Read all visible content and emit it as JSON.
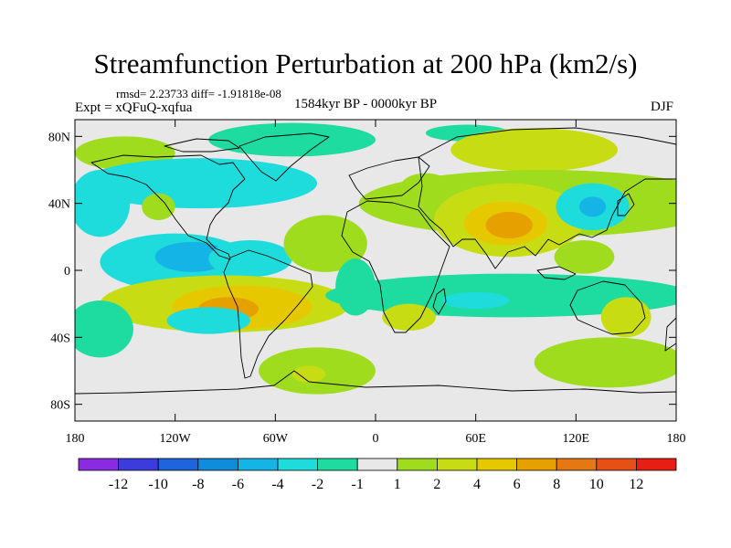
{
  "chart_data": {
    "type": "heatmap",
    "title": "Streamfunction Perturbation at 200 hPa (km2/s)",
    "subtitle_stats": "rmsd= 2.23733 diff= -1.91818e-08",
    "experiment_label": "Expt = xQFuQ-xqfua",
    "period_label": "1584kyr BP - 0000kyr BP",
    "season_label": "DJF",
    "projection": "cylindrical equidistant",
    "x_axis": {
      "range": [
        -180,
        180
      ],
      "ticks": [
        {
          "value": -180,
          "label": "180"
        },
        {
          "value": -120,
          "label": "120W"
        },
        {
          "value": -60,
          "label": "60W"
        },
        {
          "value": 0,
          "label": "0"
        },
        {
          "value": 60,
          "label": "60E"
        },
        {
          "value": 120,
          "label": "120E"
        },
        {
          "value": 180,
          "label": "180"
        }
      ]
    },
    "y_axis": {
      "range": [
        -90,
        90
      ],
      "ticks": [
        {
          "value": 80,
          "label": "80N"
        },
        {
          "value": 40,
          "label": "40N"
        },
        {
          "value": 0,
          "label": "0"
        },
        {
          "value": -40,
          "label": "40S"
        },
        {
          "value": -80,
          "label": "80S"
        }
      ]
    },
    "colorbar": {
      "colors": [
        "#8a2be2",
        "#3c3cdc",
        "#1e64dc",
        "#0f8cdc",
        "#14b4e6",
        "#1edcdc",
        "#1edca0",
        "#e8e8e8",
        "#a0dc1e",
        "#c8dc14",
        "#e6c800",
        "#e6a000",
        "#e67814",
        "#e65014",
        "#e61e14"
      ],
      "labels": [
        "-12",
        "-10",
        "-8",
        "-6",
        "-4",
        "-2",
        "-1",
        "1",
        "2",
        "4",
        "6",
        "8",
        "10",
        "12"
      ]
    },
    "background_color": "#e8e8e8",
    "regions": [
      {
        "lon": -150,
        "lat": 70,
        "rx": 30,
        "ry": 10,
        "value": 1.5
      },
      {
        "lon": -50,
        "lat": 78,
        "rx": 50,
        "ry": 10,
        "value": -1.5
      },
      {
        "lon": 55,
        "lat": 82,
        "rx": 25,
        "ry": 5,
        "value": -1.5
      },
      {
        "lon": 95,
        "lat": 72,
        "rx": 50,
        "ry": 13,
        "value": 2.5
      },
      {
        "lon": 30,
        "lat": 50,
        "rx": 15,
        "ry": 8,
        "value": 1.5
      },
      {
        "lon": -105,
        "lat": 52,
        "rx": 70,
        "ry": 15,
        "value": -2.2
      },
      {
        "lon": -165,
        "lat": 40,
        "rx": 18,
        "ry": 20,
        "value": -2
      },
      {
        "lon": -130,
        "lat": 38,
        "rx": 10,
        "ry": 8,
        "value": 1.5
      },
      {
        "lon": -120,
        "lat": 5,
        "rx": 45,
        "ry": 17,
        "value": -3
      },
      {
        "lon": -110,
        "lat": 8,
        "rx": 22,
        "ry": 9,
        "value": -5.5
      },
      {
        "lon": -75,
        "lat": 7,
        "rx": 25,
        "ry": 11,
        "value": -2.5
      },
      {
        "lon": -30,
        "lat": 16,
        "rx": 25,
        "ry": 17,
        "value": 1.5
      },
      {
        "lon": -90,
        "lat": -20,
        "rx": 75,
        "ry": 17,
        "value": 2.5
      },
      {
        "lon": -80,
        "lat": -22,
        "rx": 42,
        "ry": 13,
        "value": 4.5
      },
      {
        "lon": -88,
        "lat": -23,
        "rx": 18,
        "ry": 7,
        "value": 7.5
      },
      {
        "lon": -100,
        "lat": -30,
        "rx": 25,
        "ry": 8,
        "value": -2
      },
      {
        "lon": -12,
        "lat": -10,
        "rx": 12,
        "ry": 17,
        "value": -1.5
      },
      {
        "lon": -35,
        "lat": -60,
        "rx": 35,
        "ry": 14,
        "value": 1.5
      },
      {
        "lon": -40,
        "lat": -62,
        "rx": 10,
        "ry": 5,
        "value": 3
      },
      {
        "lon": 100,
        "lat": 40,
        "rx": 110,
        "ry": 20,
        "value": 1.5
      },
      {
        "lon": 80,
        "lat": 30,
        "rx": 45,
        "ry": 22,
        "value": 3.5
      },
      {
        "lon": 78,
        "lat": 28,
        "rx": 25,
        "ry": 13,
        "value": 5.5
      },
      {
        "lon": 80,
        "lat": 27,
        "rx": 14,
        "ry": 8,
        "value": 7.5
      },
      {
        "lon": 130,
        "lat": 38,
        "rx": 22,
        "ry": 14,
        "value": -3
      },
      {
        "lon": 130,
        "lat": 38,
        "rx": 8,
        "ry": 6,
        "value": -5.5
      },
      {
        "lon": 125,
        "lat": 8,
        "rx": 18,
        "ry": 10,
        "value": 1.5
      },
      {
        "lon": 80,
        "lat": -15,
        "rx": 110,
        "ry": 13,
        "value": -1.5
      },
      {
        "lon": 60,
        "lat": -18,
        "rx": 20,
        "ry": 5,
        "value": -3
      },
      {
        "lon": 20,
        "lat": -28,
        "rx": 16,
        "ry": 8,
        "value": 2.5
      },
      {
        "lon": 150,
        "lat": -28,
        "rx": 15,
        "ry": 12,
        "value": 3.5
      },
      {
        "lon": 140,
        "lat": -55,
        "rx": 45,
        "ry": 15,
        "value": 1.5
      },
      {
        "lon": -165,
        "lat": -35,
        "rx": 20,
        "ry": 17,
        "value": -1.5
      }
    ]
  }
}
